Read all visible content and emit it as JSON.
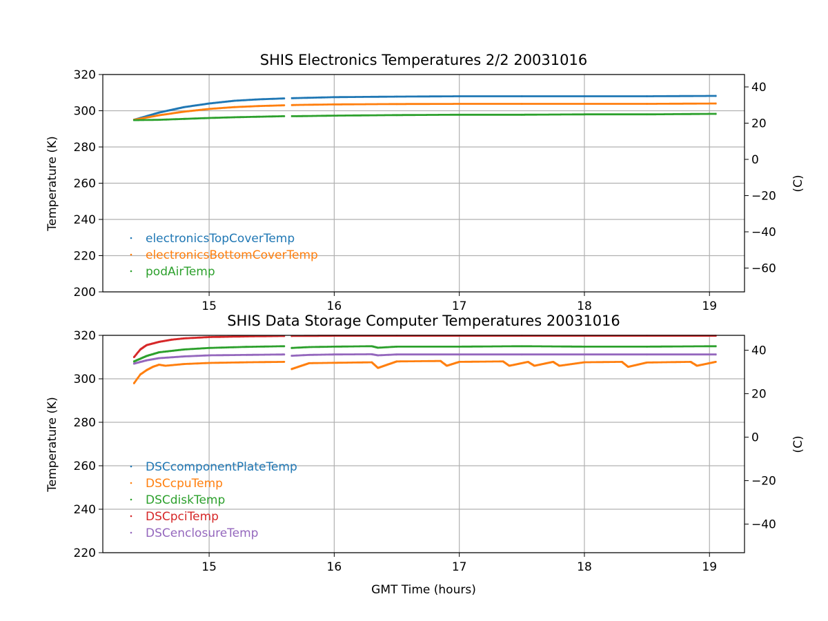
{
  "chart_data": [
    {
      "type": "scatter",
      "title": "SHIS Electronics Temperatures 2/2 20031016",
      "xlabel": "",
      "ylabel": "Temperature (K)",
      "ylabel_right": "(C)",
      "xlim": [
        14.15,
        19.28
      ],
      "ylim": [
        200,
        320
      ],
      "xticks": [
        15,
        16,
        17,
        18,
        19
      ],
      "yticks": [
        200,
        220,
        240,
        260,
        280,
        300,
        320
      ],
      "yticks_right": [
        40,
        20,
        0,
        -20,
        -40,
        -60
      ],
      "grid": true,
      "legend_position": "lower-left",
      "gap": [
        15.6,
        15.66
      ],
      "series": [
        {
          "name": "electronicsTopCoverTemp",
          "color": "#1f77b4",
          "x": [
            14.4,
            14.6,
            14.8,
            15.0,
            15.2,
            15.4,
            15.6,
            15.7,
            16.0,
            16.5,
            17.0,
            17.5,
            18.0,
            18.5,
            19.05
          ],
          "y": [
            295,
            299,
            302,
            304,
            305.5,
            306.3,
            306.8,
            307,
            307.5,
            307.8,
            308,
            308,
            308,
            308,
            308.2
          ]
        },
        {
          "name": "electronicsBottomCoverTemp",
          "color": "#ff7f0e",
          "x": [
            14.4,
            14.6,
            14.8,
            15.0,
            15.2,
            15.4,
            15.6,
            15.7,
            16.0,
            16.5,
            17.0,
            17.5,
            18.0,
            18.5,
            19.05
          ],
          "y": [
            295,
            297.5,
            299.5,
            301,
            302,
            302.6,
            303,
            303.2,
            303.5,
            303.7,
            303.8,
            303.8,
            303.8,
            303.8,
            304
          ]
        },
        {
          "name": "podAirTemp",
          "color": "#2ca02c",
          "x": [
            14.4,
            14.6,
            14.8,
            15.0,
            15.2,
            15.4,
            15.6,
            15.7,
            16.0,
            16.5,
            17.0,
            17.5,
            18.0,
            18.5,
            19.05
          ],
          "y": [
            294.8,
            295,
            295.5,
            296,
            296.4,
            296.7,
            297,
            297,
            297.3,
            297.6,
            297.8,
            297.8,
            298,
            298,
            298.3
          ]
        }
      ]
    },
    {
      "type": "scatter",
      "title": "SHIS Data Storage Computer Temperatures 20031016",
      "xlabel": "GMT Time (hours)",
      "ylabel": "Temperature (K)",
      "ylabel_right": "(C)",
      "xlim": [
        14.15,
        19.28
      ],
      "ylim": [
        220,
        320
      ],
      "xticks": [
        15,
        16,
        17,
        18,
        19
      ],
      "yticks": [
        220,
        240,
        260,
        280,
        300,
        320
      ],
      "yticks_right": [
        40,
        20,
        0,
        -20,
        -40
      ],
      "grid": true,
      "legend_position": "lower-left",
      "gap": [
        15.6,
        15.66
      ],
      "series": [
        {
          "name": "DSCcomponentPlateTemp",
          "color": "#1f77b4",
          "x": [],
          "y": []
        },
        {
          "name": "DSCcpuTemp",
          "color": "#ff7f0e",
          "x": [
            14.4,
            14.45,
            14.5,
            14.55,
            14.6,
            14.65,
            14.8,
            15.0,
            15.3,
            15.6,
            15.66,
            15.8,
            16.3,
            16.35,
            16.5,
            16.85,
            16.9,
            17.0,
            17.35,
            17.4,
            17.55,
            17.6,
            17.75,
            17.8,
            18.0,
            18.3,
            18.35,
            18.5,
            18.85,
            18.9,
            19.05
          ],
          "y": [
            298,
            302,
            304,
            305.5,
            306.5,
            306,
            306.8,
            307.3,
            307.6,
            307.8,
            304.5,
            307.2,
            307.6,
            305,
            308,
            308.2,
            306,
            307.8,
            308,
            306,
            307.8,
            306,
            307.8,
            306,
            307.6,
            307.8,
            305.5,
            307.5,
            307.8,
            306,
            307.8
          ]
        },
        {
          "name": "DSCdiskTemp",
          "color": "#2ca02c",
          "x": [
            14.4,
            14.5,
            14.6,
            14.8,
            15.0,
            15.3,
            15.6,
            15.66,
            15.8,
            16.0,
            16.3,
            16.35,
            16.5,
            17.0,
            17.5,
            18.0,
            18.5,
            19.05
          ],
          "y": [
            308,
            310.5,
            312.2,
            313.5,
            314.2,
            314.7,
            315,
            314.2,
            314.6,
            314.8,
            315,
            314.3,
            314.8,
            314.8,
            315,
            314.8,
            314.8,
            315
          ]
        },
        {
          "name": "DSCpciTemp",
          "color": "#d62728",
          "x": [
            14.4,
            14.45,
            14.5,
            14.6,
            14.7,
            14.8,
            15.0,
            15.3,
            15.6,
            15.66,
            16.0,
            16.5,
            17.0,
            17.5,
            18.0,
            18.5,
            19.05
          ],
          "y": [
            310,
            313.5,
            315.5,
            317,
            318,
            318.6,
            319.2,
            319.5,
            319.7,
            319.7,
            319.8,
            319.8,
            319.8,
            319.8,
            319.8,
            319.8,
            319.8
          ]
        },
        {
          "name": "DSCenclosureTemp",
          "color": "#9467bd",
          "x": [
            14.4,
            14.5,
            14.6,
            14.8,
            15.0,
            15.3,
            15.6,
            15.66,
            15.8,
            16.0,
            16.3,
            16.35,
            16.5,
            17.0,
            17.5,
            18.0,
            18.5,
            19.05
          ],
          "y": [
            307,
            308.5,
            309.5,
            310.3,
            310.8,
            311,
            311.2,
            310.6,
            311,
            311.2,
            311.3,
            310.8,
            311.2,
            311.2,
            311.2,
            311.2,
            311.2,
            311.2
          ]
        }
      ]
    }
  ]
}
